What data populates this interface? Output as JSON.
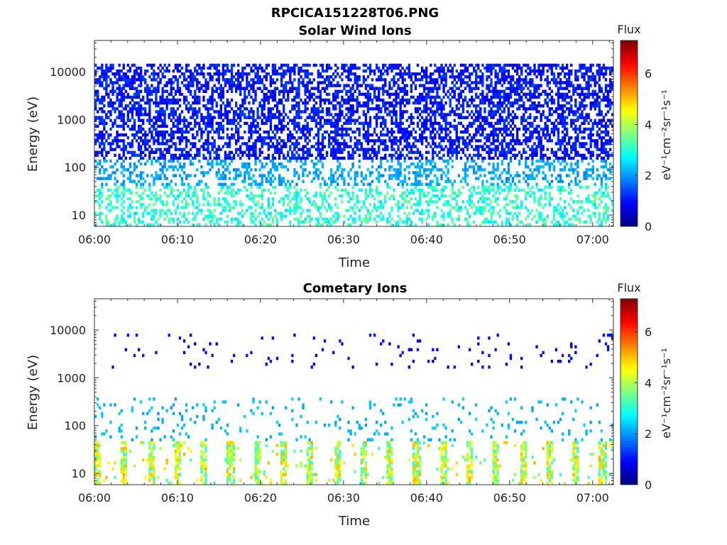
{
  "figure": {
    "title": "RPCICA151228T06.PNG"
  },
  "chart_data": [
    {
      "type": "heatmap",
      "title": "Solar Wind Ions",
      "xlabel": "Time",
      "ylabel": "Energy (eV)",
      "x_ticks": [
        "06:00",
        "06:10",
        "06:20",
        "06:30",
        "06:40",
        "06:50",
        "07:00"
      ],
      "x_range_minutes": [
        0,
        62.5
      ],
      "y_ticks": [
        "10",
        "100",
        "1000",
        "10000"
      ],
      "y_scale": "log",
      "y_range": [
        5.8,
        45000
      ],
      "colorbar": {
        "label": "Flux",
        "units": "eV⁻¹cm⁻²sr⁻¹s⁻¹",
        "ticks": [
          "0",
          "2",
          "4",
          "6"
        ],
        "range": [
          0,
          7.3
        ],
        "colormap": "jet"
      },
      "pattern": {
        "description_bands": [
          {
            "energy_range": [
              150,
              15000
            ],
            "flux_range": [
              0.7,
              1.4
            ],
            "density": 0.55
          },
          {
            "energy_range": [
              40,
              300
            ],
            "flux_range": [
              1.8,
              2.4
            ],
            "density": 0.35
          },
          {
            "energy_range": [
              6,
              40
            ],
            "flux_range": [
              2.5,
              3.6
            ],
            "density": 0.35
          }
        ]
      }
    },
    {
      "type": "heatmap",
      "title": "Cometary Ions",
      "xlabel": "Time",
      "ylabel": "Energy (eV)",
      "x_ticks": [
        "06:00",
        "06:10",
        "06:20",
        "06:30",
        "06:40",
        "06:50",
        "07:00"
      ],
      "x_range_minutes": [
        0,
        62.5
      ],
      "y_ticks": [
        "10",
        "100",
        "1000",
        "10000"
      ],
      "y_scale": "log",
      "y_range": [
        5.8,
        45000
      ],
      "colorbar": {
        "label": "Flux",
        "units": "eV⁻¹cm⁻²sr⁻¹s⁻¹",
        "ticks": [
          "0",
          "2",
          "4",
          "6"
        ],
        "range": [
          0,
          7.3
        ],
        "colormap": "jet"
      },
      "pattern": {
        "pulse_period_minutes": 3.2,
        "description_bands": [
          {
            "energy_range": [
              1500,
              8000
            ],
            "flux_range": [
              0.7,
              1.1
            ],
            "density": 0.04
          },
          {
            "energy_range": [
              50,
              400
            ],
            "flux_range": [
              2.0,
              2.5
            ],
            "density": 0.08
          },
          {
            "energy_range": [
              6,
              45
            ],
            "flux_range": [
              3.0,
              5.2
            ],
            "density": 0.8
          }
        ]
      }
    }
  ]
}
